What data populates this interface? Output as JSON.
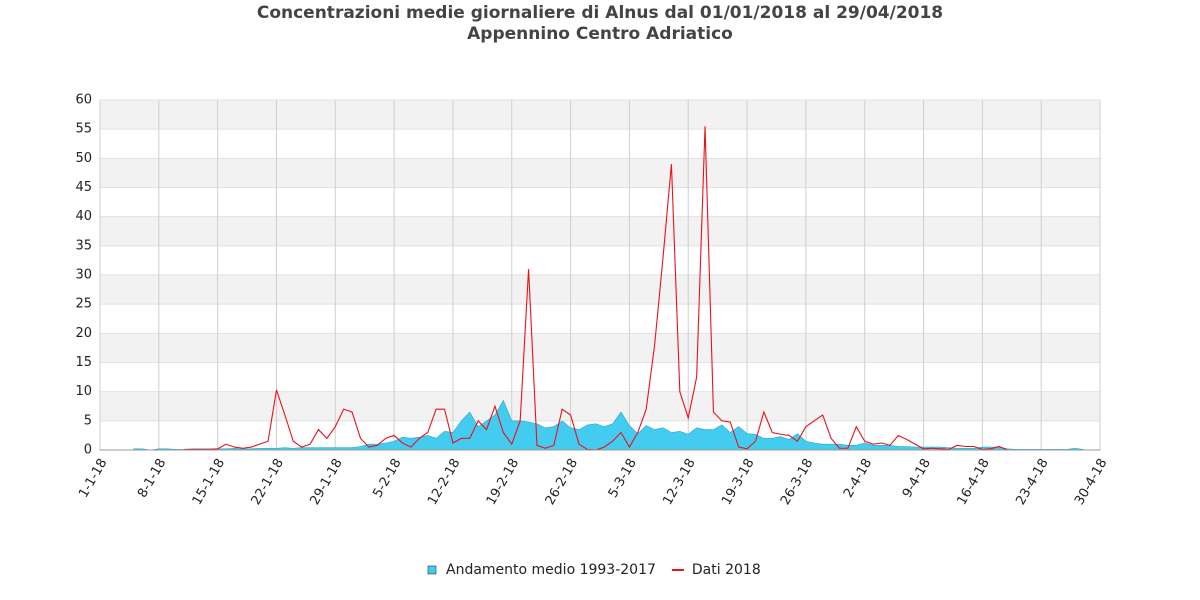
{
  "chart_data": {
    "type": "line",
    "title": "Concentrazioni medie giornaliere di Alnus dal 01/01/2018 al 29/04/2018",
    "subtitle": "Appennino Centro Adriatico",
    "categories": [
      "1-1-18",
      null,
      null,
      null,
      null,
      null,
      null,
      "8-1-18",
      null,
      null,
      null,
      null,
      null,
      null,
      "15-1-18",
      null,
      null,
      null,
      null,
      null,
      null,
      "22-1-18",
      null,
      null,
      null,
      null,
      null,
      null,
      "29-1-18",
      null,
      null,
      null,
      null,
      null,
      null,
      "5-2-18",
      null,
      null,
      null,
      null,
      null,
      null,
      "12-2-18",
      null,
      null,
      null,
      null,
      null,
      null,
      "19-2-18",
      null,
      null,
      null,
      null,
      null,
      null,
      "26-2-18",
      null,
      null,
      null,
      null,
      null,
      null,
      "5-3-18",
      null,
      null,
      null,
      null,
      null,
      null,
      "12-3-18",
      null,
      null,
      null,
      null,
      null,
      null,
      "19-3-18",
      null,
      null,
      null,
      null,
      null,
      null,
      "26-3-18",
      null,
      null,
      null,
      null,
      null,
      null,
      "2-4-18",
      null,
      null,
      null,
      null,
      null,
      null,
      "9-4-18",
      null,
      null,
      null,
      null,
      null,
      null,
      "16-4-18",
      null,
      null,
      null,
      null,
      null,
      null,
      "23-4-18",
      null,
      null,
      null,
      null,
      null,
      null,
      "30-4-18"
    ],
    "series": [
      {
        "name": "Andamento medio 1993-2017",
        "style": "area",
        "color": "#44ccf0",
        "values": [
          null,
          null,
          null,
          null,
          0.2,
          0.2,
          0,
          0.2,
          0.2,
          0.1,
          0.1,
          0.2,
          0.2,
          0.2,
          0.2,
          0.2,
          0.3,
          0.2,
          0.2,
          0.3,
          0.3,
          0.3,
          0.4,
          0.3,
          0.4,
          0.4,
          0.4,
          0.4,
          0.4,
          0.4,
          0.4,
          0.6,
          1,
          1,
          1.2,
          1.5,
          2.2,
          2,
          2.2,
          2.5,
          2,
          3.2,
          3,
          5,
          6.5,
          4,
          5,
          6,
          8.5,
          5,
          5,
          4.8,
          4.5,
          3.8,
          4,
          5,
          3.8,
          3.5,
          4.3,
          4.5,
          4,
          4.5,
          6.5,
          4.2,
          2.8,
          4.2,
          3.5,
          3.8,
          3,
          3.2,
          2.7,
          3.8,
          3.5,
          3.5,
          4.3,
          3,
          4,
          2.8,
          2.7,
          2,
          2,
          2.3,
          1.8,
          2.8,
          1.5,
          1.2,
          1,
          1,
          1,
          0.8,
          0.8,
          1.2,
          0.8,
          0.8,
          0.8,
          0.6,
          0.6,
          0.5,
          0.5,
          0.5,
          0.5,
          0.4,
          0.3,
          0.3,
          0.3,
          0.5,
          0.5,
          0.5,
          0.2,
          0.1,
          0.1,
          0.1,
          0.1,
          0.1,
          0.1,
          0.1,
          0.3,
          0.1,
          null,
          null
        ]
      },
      {
        "name": "Dati 2018",
        "style": "line",
        "color": "#e8121c",
        "values": [
          null,
          null,
          null,
          null,
          null,
          null,
          null,
          null,
          null,
          null,
          0.1,
          0.1,
          0.1,
          0.1,
          0.2,
          1,
          0.5,
          0.3,
          0.5,
          1,
          1.5,
          10.3,
          6,
          1.5,
          0.5,
          1,
          3.5,
          2,
          4,
          7,
          6.5,
          2,
          0.5,
          0.8,
          2,
          2.5,
          1.2,
          0.5,
          2,
          3,
          7,
          7,
          1.2,
          2,
          2,
          5,
          3.5,
          7.5,
          3,
          1,
          5,
          31,
          0.8,
          0.3,
          0.8,
          7,
          6,
          1,
          0.1,
          0,
          0.5,
          1.5,
          3,
          0.5,
          3,
          7,
          18,
          33,
          49,
          10,
          5.5,
          12.5,
          55.5,
          6.5,
          5,
          4.8,
          0.5,
          0.2,
          1.5,
          6.5,
          3,
          2.7,
          2.5,
          1.5,
          4,
          5,
          6,
          2,
          0.3,
          0.3,
          4,
          1.5,
          1,
          1.2,
          0.8,
          2.5,
          1.8,
          1,
          0.2,
          0.3,
          0.2,
          0.1,
          0.8,
          0.6,
          0.6,
          0.1,
          0.2,
          0.6,
          0,
          null,
          null,
          null,
          null,
          null,
          null,
          null,
          null,
          null,
          null,
          null
        ]
      }
    ],
    "ylim": [
      0,
      60
    ],
    "yticks": [
      0,
      5,
      10,
      15,
      20,
      25,
      30,
      35,
      40,
      45,
      50,
      55,
      60
    ],
    "grid": true,
    "legend": "bottom"
  }
}
